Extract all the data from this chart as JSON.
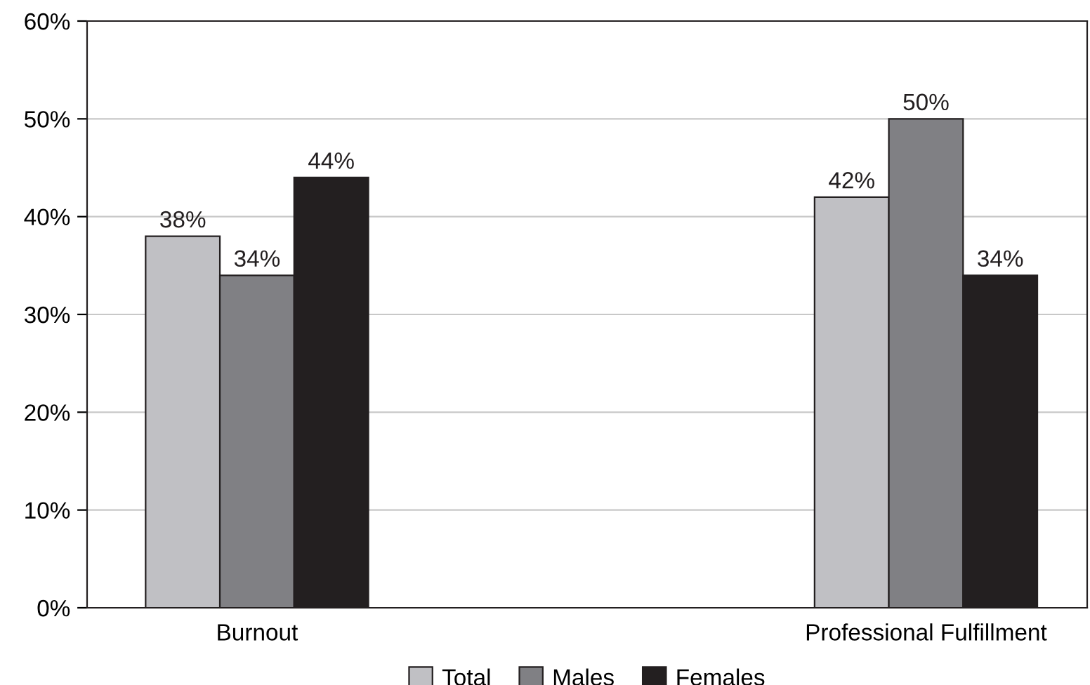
{
  "chart_data": {
    "type": "bar",
    "categories": [
      "Burnout",
      "Professional Fulfillment"
    ],
    "series": [
      {
        "name": "Total",
        "color": "#c0c0c4",
        "values": [
          38,
          42
        ],
        "value_labels": [
          "38%",
          "42%"
        ]
      },
      {
        "name": "Males",
        "color": "#808084",
        "values": [
          34,
          50
        ],
        "value_labels": [
          "34%",
          "50%"
        ]
      },
      {
        "name": "Females",
        "color": "#231f20",
        "values": [
          44,
          34
        ],
        "value_labels": [
          "44%",
          "34%"
        ]
      }
    ],
    "ylim": [
      0,
      60
    ],
    "yticks": [
      {
        "value": 0,
        "label": "0%"
      },
      {
        "value": 10,
        "label": "10%"
      },
      {
        "value": 20,
        "label": "20%"
      },
      {
        "value": 30,
        "label": "30%"
      },
      {
        "value": 40,
        "label": "40%"
      },
      {
        "value": 50,
        "label": "50%"
      },
      {
        "value": 60,
        "label": "60%"
      }
    ],
    "grid": "y",
    "legend": "bottom"
  }
}
